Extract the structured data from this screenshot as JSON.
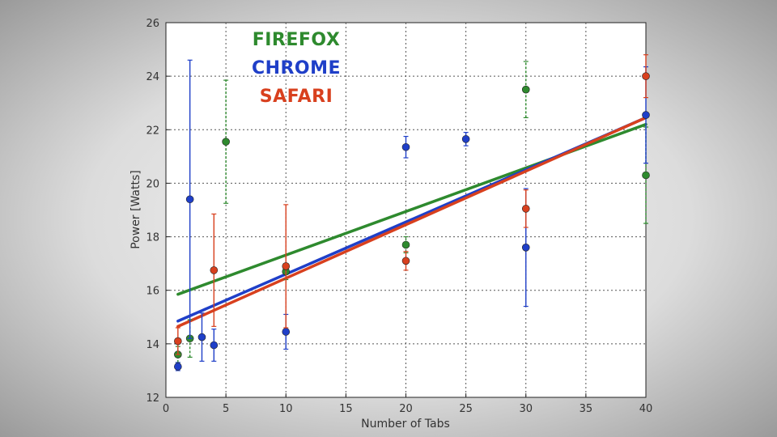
{
  "chart_data": {
    "type": "scatter",
    "title": "",
    "xlabel": "Number of Tabs",
    "ylabel": "Power [Watts]",
    "xlim": [
      0,
      40
    ],
    "ylim": [
      12,
      26
    ],
    "x_ticks": [
      0,
      5,
      10,
      15,
      20,
      25,
      30,
      35,
      40
    ],
    "y_ticks": [
      12,
      14,
      16,
      18,
      20,
      22,
      24,
      26
    ],
    "grid": true,
    "legend_position": "top-left",
    "series": [
      {
        "name": "FIREFOX",
        "color": "#2e8a2e",
        "points": [
          {
            "x": 1,
            "y": 13.6,
            "err": 0.3
          },
          {
            "x": 2,
            "y": 14.2,
            "err": 0.7
          },
          {
            "x": 5,
            "y": 21.55,
            "err": 2.3
          },
          {
            "x": 10,
            "y": 16.7,
            "err": 0.3
          },
          {
            "x": 20,
            "y": 17.7,
            "err": 0.3
          },
          {
            "x": 30,
            "y": 23.5,
            "err": 1.05
          },
          {
            "x": 40,
            "y": 20.3,
            "err": 1.8
          }
        ],
        "fit": {
          "x": [
            1,
            40
          ],
          "y": [
            15.85,
            22.2
          ]
        }
      },
      {
        "name": "CHROME",
        "color": "#1f3fc8",
        "points": [
          {
            "x": 1,
            "y": 13.15,
            "err": 0.15
          },
          {
            "x": 2,
            "y": 19.4,
            "err": 5.2
          },
          {
            "x": 3,
            "y": 14.25,
            "err": 0.9
          },
          {
            "x": 4,
            "y": 13.95,
            "err": 0.6
          },
          {
            "x": 10,
            "y": 14.45,
            "err": 0.65
          },
          {
            "x": 20,
            "y": 21.35,
            "err": 0.4
          },
          {
            "x": 25,
            "y": 21.65,
            "err": 0.25
          },
          {
            "x": 30,
            "y": 17.6,
            "err": 2.2
          },
          {
            "x": 40,
            "y": 22.55,
            "err": 1.8
          }
        ],
        "fit": {
          "x": [
            1,
            40
          ],
          "y": [
            14.85,
            22.45
          ]
        }
      },
      {
        "name": "SAFARI",
        "color": "#d8401e",
        "points": [
          {
            "x": 1,
            "y": 14.1,
            "err": 0.5
          },
          {
            "x": 4,
            "y": 16.75,
            "err": 2.1
          },
          {
            "x": 10,
            "y": 16.9,
            "err": 2.3
          },
          {
            "x": 20,
            "y": 17.1,
            "err": 0.35
          },
          {
            "x": 30,
            "y": 19.05,
            "err": 0.7
          },
          {
            "x": 40,
            "y": 24.0,
            "err": 0.8
          }
        ],
        "fit": {
          "x": [
            1,
            40
          ],
          "y": [
            14.65,
            22.45
          ]
        }
      }
    ]
  }
}
